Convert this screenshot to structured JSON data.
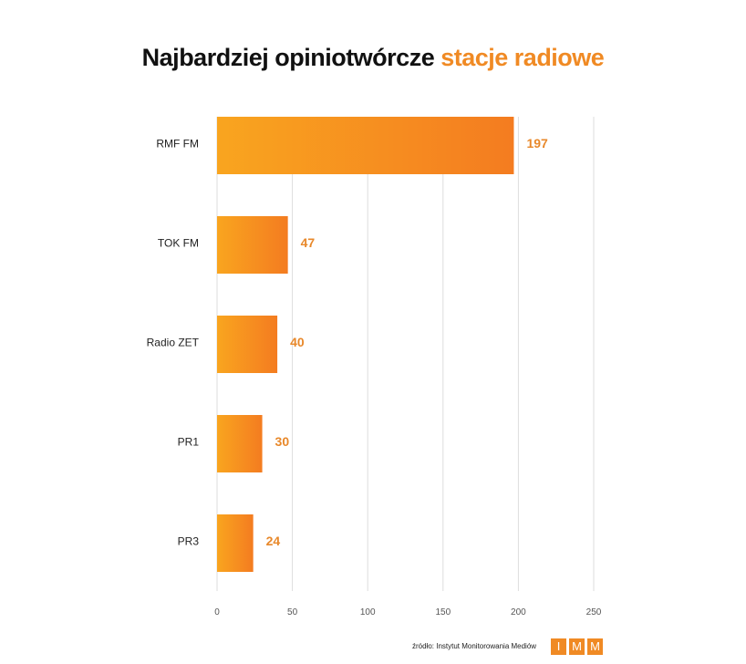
{
  "title": {
    "main": "Najbardziej opiniotwórcze",
    "accent": "stacje radiowe"
  },
  "colors": {
    "accent": "#f08a24",
    "bar_start": "#f9a51f",
    "bar_end": "#f47c20",
    "grid": "#dddddd",
    "value_label": "#e8882a"
  },
  "chart_data": {
    "type": "bar",
    "orientation": "horizontal",
    "categories": [
      "RMF FM",
      "TOK FM",
      "Radio ZET",
      "PR1",
      "PR3"
    ],
    "values": [
      197,
      47,
      40,
      30,
      24
    ],
    "xlim": [
      0,
      250
    ],
    "xticks": [
      0,
      50,
      100,
      150,
      200,
      250
    ],
    "grid": true,
    "data_labels": true
  },
  "source": "źródło: Instytut Monitorowania Mediów",
  "logo": [
    "I",
    "M",
    "M"
  ]
}
